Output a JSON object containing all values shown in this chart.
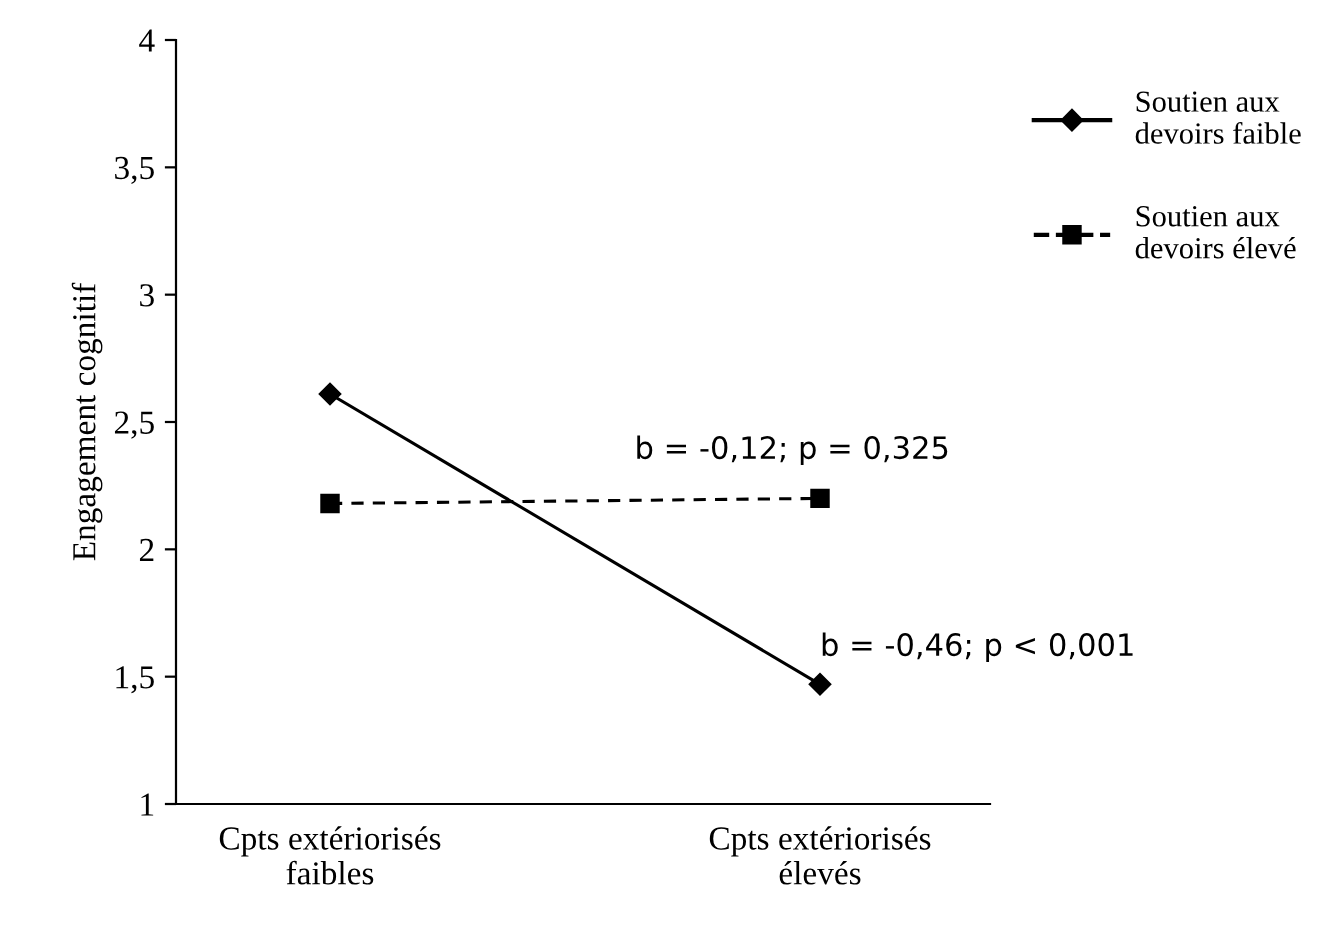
{
  "chart_data": {
    "type": "line",
    "ylabel": "Engagement cognitif",
    "categories": [
      "Cpts extériorisés\nfaibles",
      "Cpts extériorisés\nélevés"
    ],
    "series": [
      {
        "name": "Soutien aux\ndevoirs faible",
        "color": "#000000",
        "values": [
          2.61,
          1.47
        ],
        "marker": "diamond",
        "line_style": "solid"
      },
      {
        "name": "Soutien aux\ndevoirs élevé",
        "color": "#000000",
        "values": [
          2.18,
          2.2
        ],
        "marker": "square",
        "line_style": "dashed"
      }
    ],
    "ylim": [
      1,
      4
    ],
    "yticks": [
      1,
      {
        "value": 1.5,
        "label": "1,5"
      },
      2,
      {
        "value": 2.5,
        "label": "2,5"
      },
      3,
      {
        "value": 3.5,
        "label": "3,5"
      },
      4
    ],
    "annotations": [
      {
        "text": "b = -0,12; p = 0,325",
        "x": "Cpts extériorisés\nélevés",
        "y": 2.2
      },
      {
        "text": "b = -0,46; p < 0,001",
        "x": "Cpts extériorisés\nélevés",
        "y": 1.47
      }
    ],
    "legend": "top right",
    "grid": false
  }
}
